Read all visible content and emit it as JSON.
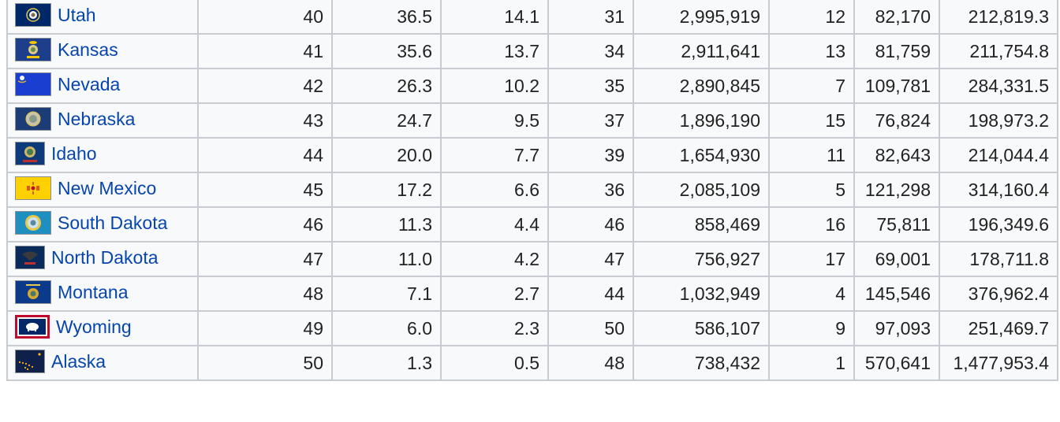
{
  "rows": [
    {
      "state": "Utah",
      "flag": "utah-flag-icon",
      "rank": "40",
      "v1": "36.5",
      "v2": "14.1",
      "r2": "31",
      "pop": "2,995,919",
      "r3": "12",
      "area_mi": "82,170",
      "area_km": "212,819.3"
    },
    {
      "state": "Kansas",
      "flag": "kansas-flag-icon",
      "rank": "41",
      "v1": "35.6",
      "v2": "13.7",
      "r2": "34",
      "pop": "2,911,641",
      "r3": "13",
      "area_mi": "81,759",
      "area_km": "211,754.8"
    },
    {
      "state": "Nevada",
      "flag": "nevada-flag-icon",
      "rank": "42",
      "v1": "26.3",
      "v2": "10.2",
      "r2": "35",
      "pop": "2,890,845",
      "r3": "7",
      "area_mi": "109,781",
      "area_km": "284,331.5"
    },
    {
      "state": "Nebraska",
      "flag": "nebraska-flag-icon",
      "rank": "43",
      "v1": "24.7",
      "v2": "9.5",
      "r2": "37",
      "pop": "1,896,190",
      "r3": "15",
      "area_mi": "76,824",
      "area_km": "198,973.2"
    },
    {
      "state": "Idaho",
      "flag": "idaho-flag-icon",
      "rank": "44",
      "v1": "20.0",
      "v2": "7.7",
      "r2": "39",
      "pop": "1,654,930",
      "r3": "11",
      "area_mi": "82,643",
      "area_km": "214,044.4"
    },
    {
      "state": "New Mexico",
      "flag": "new-mexico-flag-icon",
      "rank": "45",
      "v1": "17.2",
      "v2": "6.6",
      "r2": "36",
      "pop": "2,085,109",
      "r3": "5",
      "area_mi": "121,298",
      "area_km": "314,160.4"
    },
    {
      "state": "South Dakota",
      "flag": "south-dakota-flag-icon",
      "rank": "46",
      "v1": "11.3",
      "v2": "4.4",
      "r2": "46",
      "pop": "858,469",
      "r3": "16",
      "area_mi": "75,811",
      "area_km": "196,349.6"
    },
    {
      "state": "North Dakota",
      "flag": "north-dakota-flag-icon",
      "rank": "47",
      "v1": "11.0",
      "v2": "4.2",
      "r2": "47",
      "pop": "756,927",
      "r3": "17",
      "area_mi": "69,001",
      "area_km": "178,711.8"
    },
    {
      "state": "Montana",
      "flag": "montana-flag-icon",
      "rank": "48",
      "v1": "7.1",
      "v2": "2.7",
      "r2": "44",
      "pop": "1,032,949",
      "r3": "4",
      "area_mi": "145,546",
      "area_km": "376,962.4"
    },
    {
      "state": "Wyoming",
      "flag": "wyoming-flag-icon",
      "rank": "49",
      "v1": "6.0",
      "v2": "2.3",
      "r2": "50",
      "pop": "586,107",
      "r3": "9",
      "area_mi": "97,093",
      "area_km": "251,469.7"
    },
    {
      "state": "Alaska",
      "flag": "alaska-flag-icon",
      "rank": "50",
      "v1": "1.3",
      "v2": "0.5",
      "r2": "48",
      "pop": "738,432",
      "r3": "1",
      "area_mi": "570,641",
      "area_km": "1,477,953.4"
    }
  ],
  "colors": {
    "link": "#0645ad",
    "border": "#c8ccd1",
    "cell_bg": "#f8f9fa"
  }
}
